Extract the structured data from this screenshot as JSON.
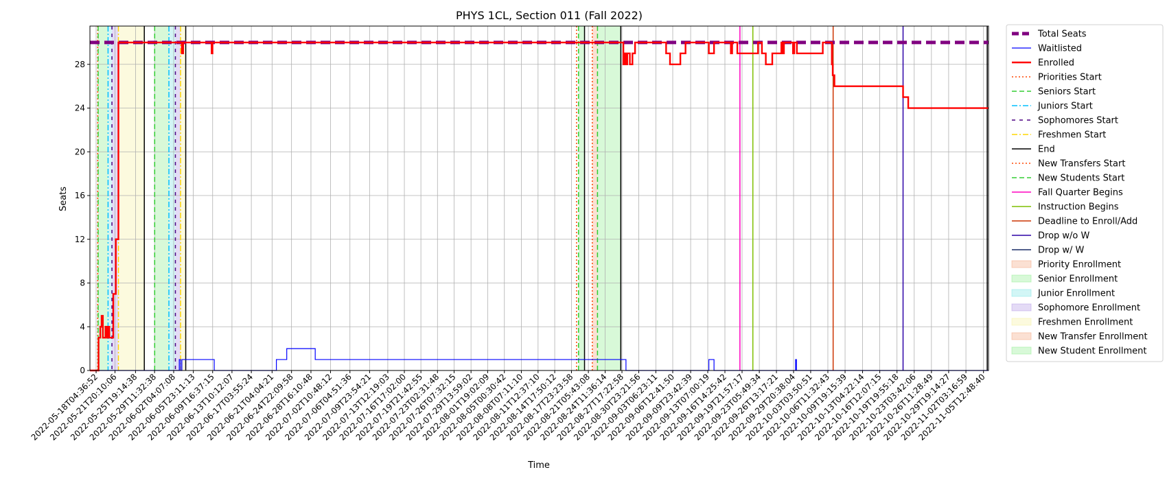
{
  "chart_data": {
    "type": "line",
    "title": "PHYS 1CL, Section 011 (Fall 2022)",
    "xlabel": "Time",
    "ylabel": "Seats",
    "ylim": [
      0,
      31.5
    ],
    "xlim": [
      "2022-05-17T00:00:00",
      "2022-11-06T12:00:00"
    ],
    "yticks": [
      0,
      4,
      8,
      12,
      16,
      20,
      24,
      28
    ],
    "xtick_labels": [
      "2022-05-18T04:36:52",
      "2022-05-21T20:10:06",
      "2022-05-25T19:14:38",
      "2022-05-29T11:32:38",
      "2022-06-02T04:07:08",
      "2022-06-05T23:11:13",
      "2022-06-09T16:37:15",
      "2022-06-13T10:12:07",
      "2022-06-17T03:55:24",
      "2022-06-21T04:04:21",
      "2022-06-24T22:09:58",
      "2022-06-28T16:10:48",
      "2022-07-02T10:48:12",
      "2022-07-06T04:51:36",
      "2022-07-09T23:54:21",
      "2022-07-13T12:19:03",
      "2022-07-16T17:02:00",
      "2022-07-19T21:42:55",
      "2022-07-23T02:31:48",
      "2022-07-26T07:32:15",
      "2022-07-29T13:59:02",
      "2022-08-01T19:02:09",
      "2022-08-05T00:30:42",
      "2022-08-08T07:11:10",
      "2022-08-11T12:37:10",
      "2022-08-14T17:50:12",
      "2022-08-17T23:23:58",
      "2022-08-21T05:43:08",
      "2022-08-24T11:36:14",
      "2022-08-27T17:22:58",
      "2022-08-30T23:21:56",
      "2022-09-03T06:23:11",
      "2022-09-06T12:41:50",
      "2022-09-09T23:42:39",
      "2022-09-13T07:00:19",
      "2022-09-16T14:25:42",
      "2022-09-19T21:57:17",
      "2022-09-23T05:49:34",
      "2022-09-26T13:17:21",
      "2022-09-29T20:38:04",
      "2022-10-03T03:50:51",
      "2022-10-06T11:32:43",
      "2022-10-09T19:15:39",
      "2022-10-13T04:22:14",
      "2022-10-16T12:07:15",
      "2022-10-19T19:55:18",
      "2022-10-23T03:42:06",
      "2022-10-26T11:28:49",
      "2022-10-29T19:14:27",
      "2022-11-02T03:16:59",
      "2022-11-05T12:48:40"
    ],
    "grid": true,
    "legend_position": "outside-right",
    "total_seats": 30,
    "series": [
      {
        "name": "Total Seats",
        "color": "#800080",
        "style": "dashed-thick",
        "points": [
          [
            "2022-05-17T00:00:00",
            30
          ],
          [
            "2022-11-06T12:00:00",
            30
          ]
        ]
      },
      {
        "name": "Waitlisted",
        "color": "#0000ff",
        "style": "step",
        "points": [
          [
            "2022-05-17T00:00:00",
            0
          ],
          [
            "2022-06-03T06:00:00",
            1
          ],
          [
            "2022-06-03T12:00:00",
            0
          ],
          [
            "2022-06-03T18:00:00",
            1
          ],
          [
            "2022-06-10T00:00:00",
            0
          ],
          [
            "2022-06-22T00:00:00",
            1
          ],
          [
            "2022-06-24T00:00:00",
            2
          ],
          [
            "2022-06-29T12:00:00",
            1
          ],
          [
            "2022-08-28T12:00:00",
            0
          ],
          [
            "2022-09-13T12:00:00",
            1
          ],
          [
            "2022-09-14T12:00:00",
            0
          ],
          [
            "2022-09-30T06:00:00",
            1
          ],
          [
            "2022-09-30T10:00:00",
            0
          ],
          [
            "2022-11-06T12:00:00",
            0
          ]
        ]
      },
      {
        "name": "Enrolled",
        "color": "#ff0000",
        "style": "step-thick",
        "points": [
          [
            "2022-05-17T00:00:00",
            0
          ],
          [
            "2022-05-18T16:00:00",
            3
          ],
          [
            "2022-05-19T00:00:00",
            4
          ],
          [
            "2022-05-19T06:00:00",
            5
          ],
          [
            "2022-05-19T12:00:00",
            3
          ],
          [
            "2022-05-20T00:00:00",
            4
          ],
          [
            "2022-05-20T06:00:00",
            3
          ],
          [
            "2022-05-20T12:00:00",
            4
          ],
          [
            "2022-05-20T18:00:00",
            3
          ],
          [
            "2022-05-21T12:00:00",
            7
          ],
          [
            "2022-05-22T00:00:00",
            12
          ],
          [
            "2022-05-22T12:00:00",
            30
          ],
          [
            "2022-06-03T18:00:00",
            29
          ],
          [
            "2022-06-04T00:00:00",
            30
          ],
          [
            "2022-06-09T12:00:00",
            29
          ],
          [
            "2022-06-09T16:00:00",
            30
          ],
          [
            "2022-08-28T00:00:00",
            28
          ],
          [
            "2022-08-28T06:00:00",
            29
          ],
          [
            "2022-08-28T12:00:00",
            28
          ],
          [
            "2022-08-28T18:00:00",
            29
          ],
          [
            "2022-08-29T06:00:00",
            28
          ],
          [
            "2022-08-29T18:00:00",
            29
          ],
          [
            "2022-08-30T06:00:00",
            30
          ],
          [
            "2022-09-05T06:00:00",
            29
          ],
          [
            "2022-09-06T00:00:00",
            28
          ],
          [
            "2022-09-08T00:00:00",
            29
          ],
          [
            "2022-09-09T00:00:00",
            30
          ],
          [
            "2022-09-13T12:00:00",
            29
          ],
          [
            "2022-09-14T12:00:00",
            30
          ],
          [
            "2022-09-17T18:00:00",
            29
          ],
          [
            "2022-09-18T00:00:00",
            30
          ],
          [
            "2022-09-19T00:00:00",
            29
          ],
          [
            "2022-09-23T00:00:00",
            30
          ],
          [
            "2022-09-23T18:00:00",
            29
          ],
          [
            "2022-09-24T12:00:00",
            28
          ],
          [
            "2022-09-25T18:00:00",
            29
          ],
          [
            "2022-09-27T12:00:00",
            30
          ],
          [
            "2022-09-27T18:00:00",
            29
          ],
          [
            "2022-09-28T00:00:00",
            30
          ],
          [
            "2022-09-29T18:00:00",
            29
          ],
          [
            "2022-09-30T00:00:00",
            30
          ],
          [
            "2022-09-30T12:00:00",
            29
          ],
          [
            "2022-10-05T12:00:00",
            30
          ],
          [
            "2022-10-07T06:00:00",
            28
          ],
          [
            "2022-10-07T10:00:00",
            27
          ],
          [
            "2022-10-07T18:00:00",
            26
          ],
          [
            "2022-10-21T00:00:00",
            25
          ],
          [
            "2022-10-22T00:00:00",
            24
          ],
          [
            "2022-11-06T12:00:00",
            24
          ]
        ]
      }
    ],
    "event_lines": [
      {
        "name": "Priorities Start",
        "color": "#ff4500",
        "dash": "dotted",
        "x": [
          "2022-05-18T12:00:00",
          "2022-08-18T23:00:00"
        ]
      },
      {
        "name": "Seniors Start",
        "color": "#32cd32",
        "dash": "dashed",
        "x": [
          "2022-05-18T14:00:00",
          "2022-05-29T12:00:00",
          "2022-08-19T08:00:00"
        ]
      },
      {
        "name": "Juniors Start",
        "color": "#00bfff",
        "dash": "dashdot",
        "x": [
          "2022-05-20T12:00:00",
          "2022-06-01T06:00:00"
        ]
      },
      {
        "name": "Sophomores Start",
        "color": "#4b0082",
        "dash": "loosedash",
        "x": [
          "2022-05-21T06:00:00",
          "2022-06-02T12:00:00"
        ]
      },
      {
        "name": "Freshmen Start",
        "color": "#ffd700",
        "dash": "dashdot",
        "x": [
          "2022-05-22T12:00:00",
          "2022-06-03T12:00:00"
        ]
      },
      {
        "name": "End",
        "color": "#000000",
        "dash": "solid",
        "x": [
          "2022-05-27T12:00:00",
          "2022-06-04T12:00:00",
          "2022-08-20T12:00:00",
          "2022-08-27T12:00:00",
          "2022-11-06T06:00:00"
        ]
      },
      {
        "name": "New Transfers Start",
        "color": "#ff4500",
        "dash": "dotted",
        "x": [
          "2022-08-22T00:00:00"
        ]
      },
      {
        "name": "New Students Start",
        "color": "#32cd32",
        "dash": "dashed",
        "x": [
          "2022-08-23T00:00:00"
        ]
      },
      {
        "name": "Fall Quarter Begins",
        "color": "#ff00bf",
        "dash": "solid",
        "x": [
          "2022-09-19T12:00:00"
        ]
      },
      {
        "name": "Instruction Begins",
        "color": "#7fbf00",
        "dash": "solid",
        "x": [
          "2022-09-22T00:00:00"
        ]
      },
      {
        "name": "Deadline to Enroll/Add",
        "color": "#cc3300",
        "dash": "solid",
        "x": [
          "2022-10-07T12:00:00"
        ]
      },
      {
        "name": "Drop w/o W",
        "color": "#2b00a6",
        "dash": "solid",
        "x": [
          "2022-10-21T00:00:00"
        ]
      },
      {
        "name": "Drop w/ W",
        "color": "#1a2b66",
        "dash": "solid",
        "x": []
      }
    ],
    "shaded_periods": [
      {
        "name": "Priority Enrollment",
        "color": "#f4a582",
        "ranges": [
          [
            "2022-05-18T12:00:00",
            "2022-05-18T14:00:00"
          ]
        ]
      },
      {
        "name": "Senior Enrollment",
        "color": "#90ee90",
        "ranges": [
          [
            "2022-05-18T14:00:00",
            "2022-05-20T12:00:00"
          ],
          [
            "2022-05-29T12:00:00",
            "2022-06-01T06:00:00"
          ]
        ]
      },
      {
        "name": "Junior Enrollment",
        "color": "#7fe5e5",
        "ranges": [
          [
            "2022-05-20T12:00:00",
            "2022-05-21T06:00:00"
          ],
          [
            "2022-06-01T06:00:00",
            "2022-06-02T12:00:00"
          ]
        ]
      },
      {
        "name": "Sophomore Enrollment",
        "color": "#b399e6",
        "ranges": [
          [
            "2022-05-21T06:00:00",
            "2022-05-22T12:00:00"
          ],
          [
            "2022-06-02T12:00:00",
            "2022-06-03T12:00:00"
          ]
        ]
      },
      {
        "name": "Freshmen Enrollment",
        "color": "#f5f0a0",
        "ranges": [
          [
            "2022-05-22T12:00:00",
            "2022-05-27T12:00:00"
          ],
          [
            "2022-06-03T12:00:00",
            "2022-06-04T12:00:00"
          ]
        ]
      },
      {
        "name": "New Transfer Enrollment",
        "color": "#f4a582",
        "ranges": [
          [
            "2022-08-22T00:00:00",
            "2022-08-23T00:00:00"
          ]
        ]
      },
      {
        "name": "New Student Enrollment",
        "color": "#90ee90",
        "ranges": [
          [
            "2022-08-19T08:00:00",
            "2022-08-20T12:00:00"
          ],
          [
            "2022-08-23T00:00:00",
            "2022-08-27T12:00:00"
          ]
        ]
      }
    ]
  }
}
